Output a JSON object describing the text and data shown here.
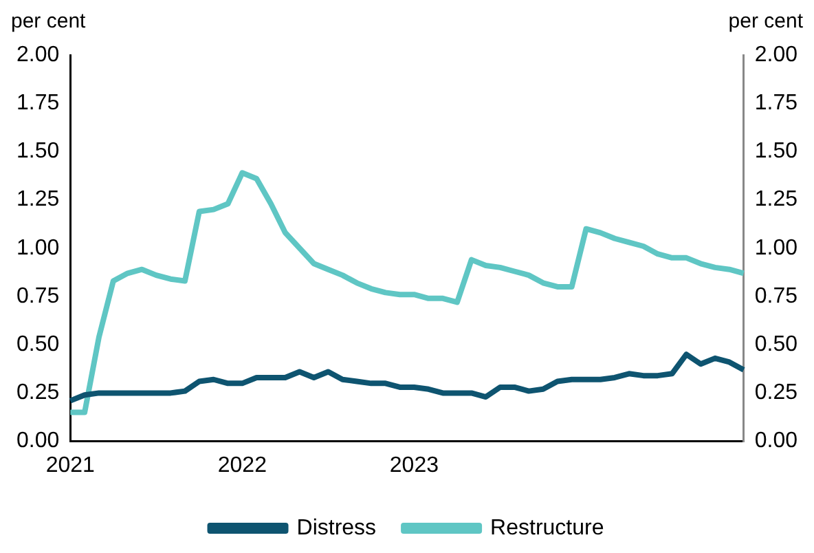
{
  "chart_data": {
    "type": "line",
    "ylabel": "per cent",
    "y2label": "per cent",
    "categories": [
      "2021",
      null,
      null,
      null,
      null,
      null,
      null,
      null,
      null,
      null,
      null,
      null,
      "2022",
      null,
      null,
      null,
      null,
      null,
      null,
      null,
      null,
      null,
      null,
      null,
      "2023",
      null,
      null,
      null,
      null,
      null,
      null,
      null,
      null,
      null,
      null,
      null,
      null,
      null,
      null,
      null,
      null,
      null,
      null,
      null,
      null,
      null,
      null,
      null
    ],
    "series": [
      {
        "name": "Distress",
        "color": "#0e5470",
        "values": [
          0.21,
          0.24,
          0.25,
          0.25,
          0.25,
          0.25,
          0.25,
          0.25,
          0.26,
          0.31,
          0.32,
          0.3,
          0.3,
          0.33,
          0.33,
          0.33,
          0.36,
          0.33,
          0.36,
          0.32,
          0.31,
          0.3,
          0.3,
          0.28,
          0.28,
          0.27,
          0.25,
          0.25,
          0.25,
          0.23,
          0.28,
          0.28,
          0.26,
          0.27,
          0.31,
          0.32,
          0.32,
          0.32,
          0.33,
          0.35,
          0.34,
          0.34,
          0.35,
          0.45,
          0.4,
          0.43,
          0.41,
          0.37
        ]
      },
      {
        "name": "Restructure",
        "color": "#5fc6c4",
        "values": [
          0.15,
          0.15,
          0.54,
          0.83,
          0.87,
          0.89,
          0.86,
          0.84,
          0.83,
          1.19,
          1.2,
          1.23,
          1.39,
          1.36,
          1.23,
          1.08,
          1.0,
          0.92,
          0.89,
          0.86,
          0.82,
          0.79,
          0.77,
          0.76,
          0.76,
          0.74,
          0.74,
          0.72,
          0.94,
          0.91,
          0.9,
          0.88,
          0.86,
          0.82,
          0.8,
          0.8,
          1.1,
          1.08,
          1.05,
          1.03,
          1.01,
          0.97,
          0.95,
          0.95,
          0.92,
          0.9,
          0.89,
          0.87
        ]
      }
    ],
    "ylim": [
      0,
      2
    ],
    "yticks": [
      {
        "value": 0,
        "label": "0.00"
      },
      {
        "value": 0.25,
        "label": "0.25"
      },
      {
        "value": 0.5,
        "label": "0.50"
      },
      {
        "value": 0.75,
        "label": "0.75"
      },
      {
        "value": 1,
        "label": "1.00"
      },
      {
        "value": 1.25,
        "label": "1.25"
      },
      {
        "value": 1.5,
        "label": "1.50"
      },
      {
        "value": 1.75,
        "label": "1.75"
      },
      {
        "value": 2,
        "label": "2.00"
      }
    ],
    "y2lim": [
      0,
      2
    ],
    "y2ticks": [
      {
        "value": 0,
        "label": "0.00"
      },
      {
        "value": 0.25,
        "label": "0.25"
      },
      {
        "value": 0.5,
        "label": "0.50"
      },
      {
        "value": 0.75,
        "label": "0.75"
      },
      {
        "value": 1,
        "label": "1.00"
      },
      {
        "value": 1.25,
        "label": "1.25"
      },
      {
        "value": 1.5,
        "label": "1.50"
      },
      {
        "value": 1.75,
        "label": "1.75"
      },
      {
        "value": 2,
        "label": "2.00"
      }
    ],
    "grid": false,
    "legend": "bottom",
    "marker": "none",
    "line_style": "solid"
  }
}
